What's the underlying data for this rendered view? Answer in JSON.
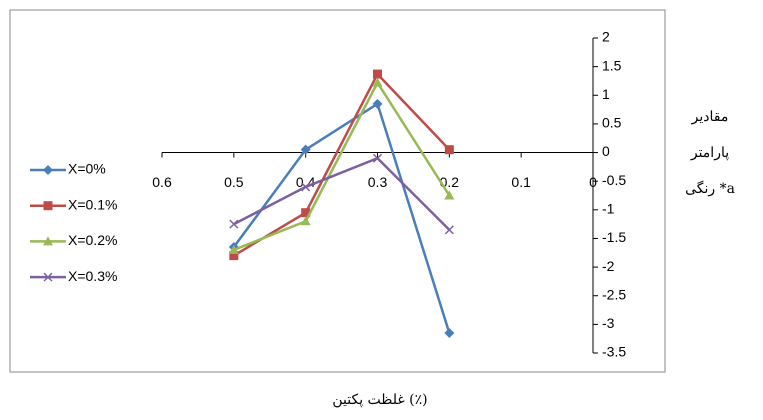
{
  "chart_data": {
    "type": "line",
    "xlabel": "غلظت پکتین (٪)",
    "ylabel": [
      "مقادیر",
      "پارامتر",
      "رنگی *a"
    ],
    "x": [
      0.5,
      0.4,
      0.3,
      0.2
    ],
    "series": [
      {
        "name": "X=0%",
        "color": "#4a7ebb",
        "marker": "diamond",
        "values": [
          -1.65,
          0.05,
          0.85,
          -3.15
        ]
      },
      {
        "name": "X=0.1%",
        "color": "#be4b48",
        "marker": "square",
        "values": [
          -1.8,
          -1.05,
          1.37,
          0.05
        ]
      },
      {
        "name": "X=0.2%",
        "color": "#98b954",
        "marker": "triangle",
        "values": [
          -1.7,
          -1.2,
          1.22,
          -0.75
        ]
      },
      {
        "name": "X=0.3%",
        "color": "#7d60a0",
        "marker": "x",
        "values": [
          -1.25,
          -0.6,
          -0.1,
          -1.35
        ]
      }
    ],
    "xlim": [
      0.6,
      0
    ],
    "xticks": [
      0.6,
      0.5,
      0.4,
      0.3,
      0.2,
      0.1,
      0
    ],
    "ylim": [
      -3.5,
      2
    ],
    "yticks": [
      2,
      1.5,
      1,
      0.5,
      0,
      -0.5,
      -1,
      -1.5,
      -2,
      -2.5,
      -3,
      -3.5
    ],
    "legend": "left"
  }
}
